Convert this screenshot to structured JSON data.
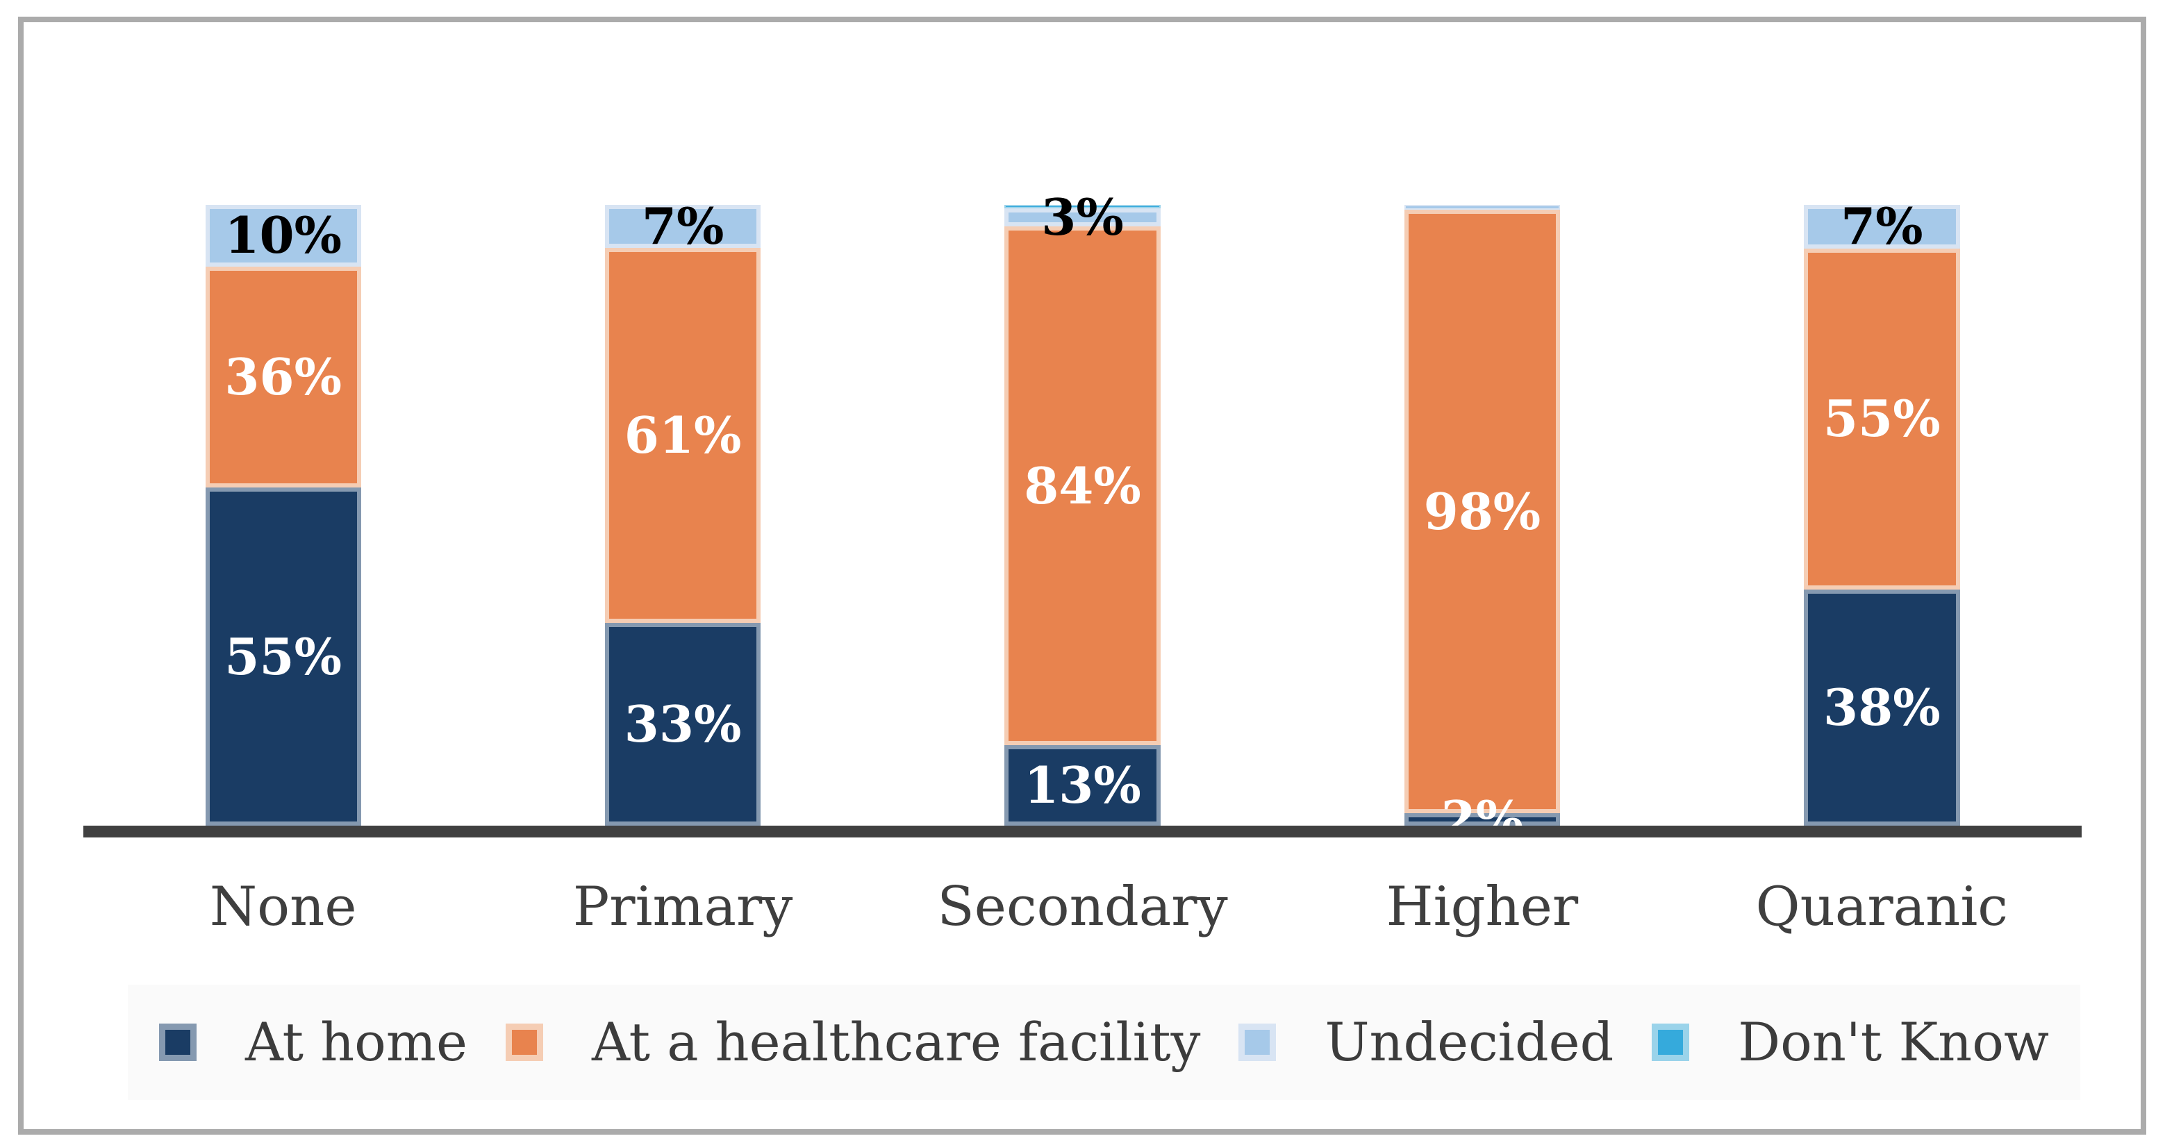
{
  "figure": {
    "title": "",
    "frame_color": "#ABABAB",
    "background": "#FFFFFF",
    "axis_color": "#404040",
    "legend_background": "#FAFAFA",
    "category_text_color": "#3F3F3F",
    "legend_text_color": "#3C3C3C"
  },
  "chart_data": {
    "type": "bar",
    "stacked": true,
    "orientation": "vertical",
    "unit": "%",
    "title": "",
    "xlabel": "",
    "ylabel": "",
    "ylim": [
      0,
      100
    ],
    "gridlines": false,
    "y_axis_visible": false,
    "legend_position": "bottom",
    "categories": [
      "None",
      "Primary",
      "Secondary",
      "Higher",
      "Quaranic"
    ],
    "series": [
      {
        "name": "At home",
        "color": "#1A3C64",
        "border_color": "#8599B0",
        "label_color": "#FFFFFF",
        "values": [
          55,
          33,
          13,
          2,
          38
        ],
        "value_labels": [
          "55%",
          "33%",
          "13%",
          "2%",
          "38%"
        ],
        "visual_heights": [
          55,
          33,
          13,
          2,
          38
        ]
      },
      {
        "name": "At a healthcare facility",
        "color": "#E8834E",
        "border_color": "#F5CDB4",
        "label_color": "#FFFFFF",
        "values": [
          36,
          61,
          84,
          98,
          55
        ],
        "value_labels": [
          "36%",
          "61%",
          "84%",
          "98%",
          "55%"
        ],
        "visual_heights": [
          36,
          61,
          84,
          98,
          55
        ]
      },
      {
        "name": "Undecided",
        "color": "#A6C9E9",
        "border_color": "#D8E4F3",
        "label_color": "#000000",
        "values": [
          10,
          7,
          3,
          0,
          7
        ],
        "value_labels": [
          "10%",
          "7%",
          "3%",
          "",
          "7%"
        ],
        "visual_heights": [
          10,
          7,
          3,
          0.8,
          7
        ]
      },
      {
        "name": "Don't Know",
        "color": "#35AADC",
        "border_color": "#9AD3EA",
        "label_color": "#000000",
        "values": [
          0,
          0,
          0,
          0,
          0
        ],
        "value_labels": [
          "",
          "",
          "",
          "",
          ""
        ],
        "visual_heights": [
          0,
          0,
          0.5,
          0,
          0
        ]
      }
    ]
  }
}
